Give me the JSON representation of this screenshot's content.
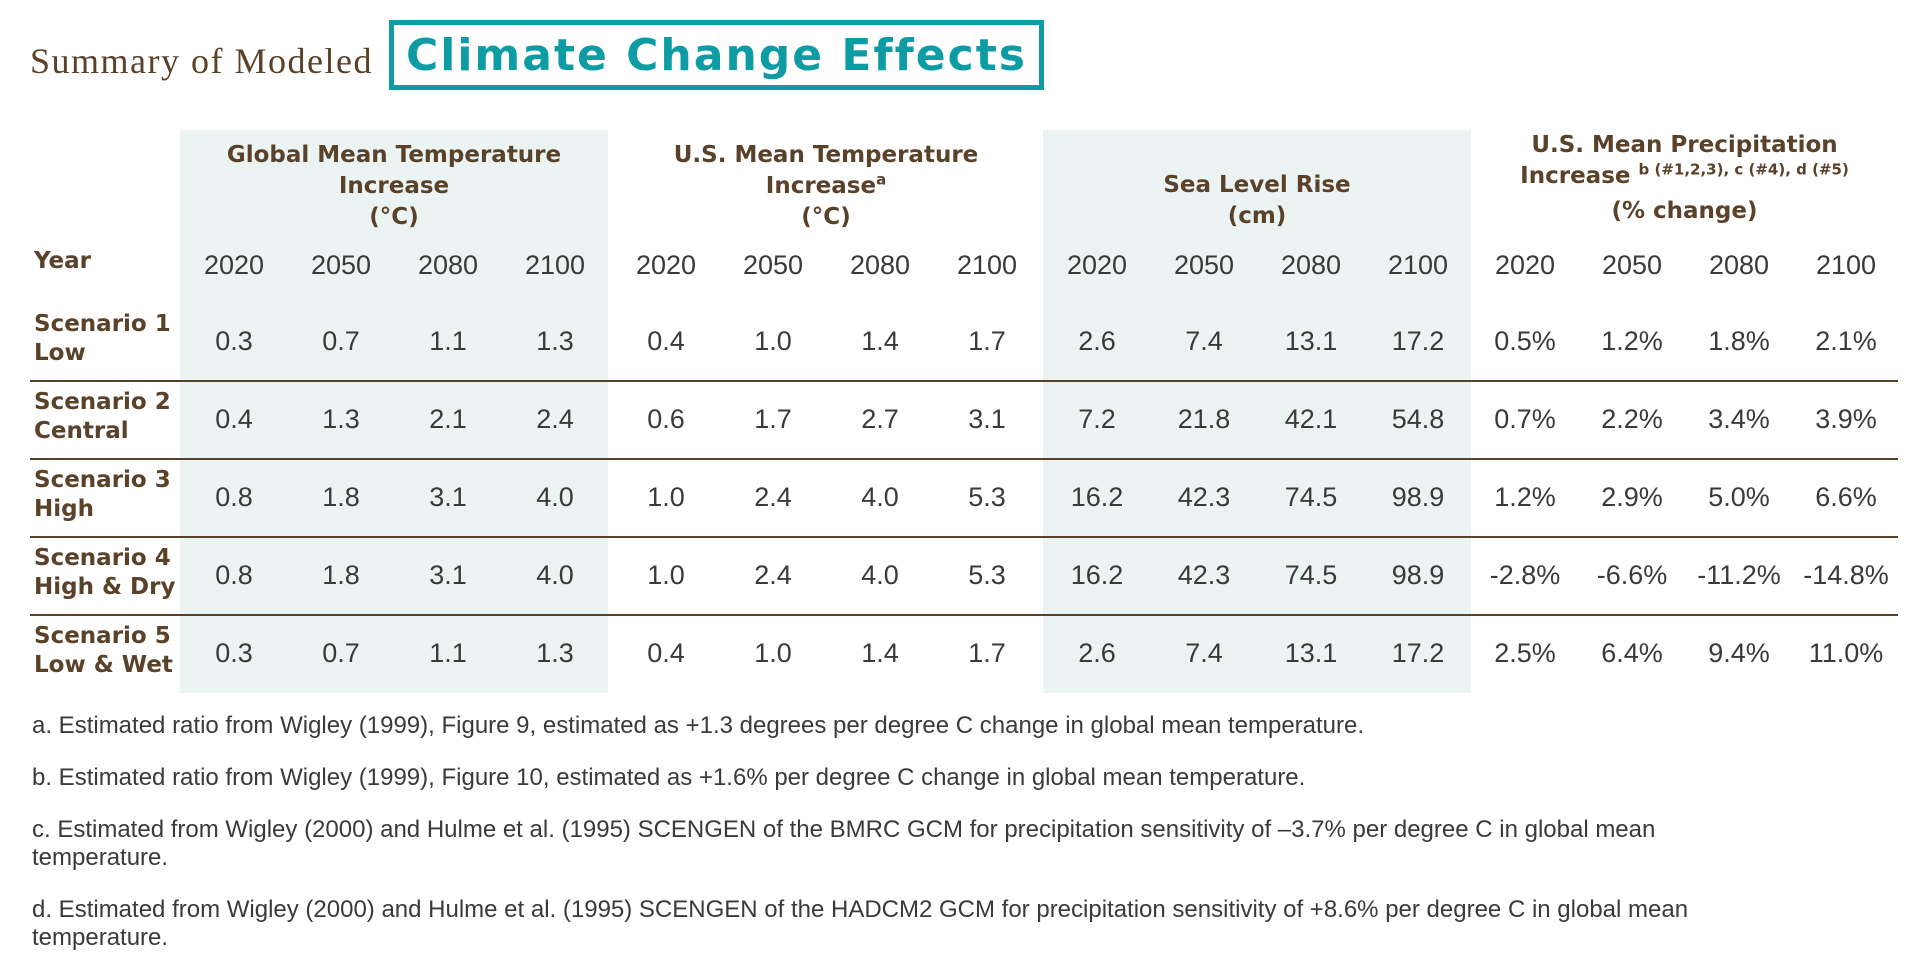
{
  "title": {
    "prefix": "Summary of Modeled",
    "main": "Climate Change Effects"
  },
  "table": {
    "year_label": "Year",
    "groups": [
      {
        "line1": "Global Mean Temperature",
        "line2": "Increase",
        "sup": "",
        "unit": "(°C)"
      },
      {
        "line1": "U.S. Mean Temperature",
        "line2": "Increase",
        "sup": "a",
        "unit": "(°C)"
      },
      {
        "line1": "Sea Level Rise",
        "line2": "",
        "sup": "",
        "unit": "(cm)"
      },
      {
        "line1": "U.S. Mean Precipitation",
        "line2": "Increase",
        "sup": "b (#1,2,3), c (#4), d (#5)",
        "unit": "(% change)"
      }
    ],
    "years": [
      "2020",
      "2050",
      "2080",
      "2100",
      "2020",
      "2050",
      "2080",
      "2100",
      "2020",
      "2050",
      "2080",
      "2100",
      "2020",
      "2050",
      "2080",
      "2100"
    ],
    "rows": [
      {
        "name": "Scenario 1",
        "sub": "Low",
        "values": [
          "0.3",
          "0.7",
          "1.1",
          "1.3",
          "0.4",
          "1.0",
          "1.4",
          "1.7",
          "2.6",
          "7.4",
          "13.1",
          "17.2",
          "0.5%",
          "1.2%",
          "1.8%",
          "2.1%"
        ]
      },
      {
        "name": "Scenario 2",
        "sub": "Central",
        "values": [
          "0.4",
          "1.3",
          "2.1",
          "2.4",
          "0.6",
          "1.7",
          "2.7",
          "3.1",
          "7.2",
          "21.8",
          "42.1",
          "54.8",
          "0.7%",
          "2.2%",
          "3.4%",
          "3.9%"
        ]
      },
      {
        "name": "Scenario 3",
        "sub": "High",
        "values": [
          "0.8",
          "1.8",
          "3.1",
          "4.0",
          "1.0",
          "2.4",
          "4.0",
          "5.3",
          "16.2",
          "42.3",
          "74.5",
          "98.9",
          "1.2%",
          "2.9%",
          "5.0%",
          "6.6%"
        ]
      },
      {
        "name": "Scenario 4",
        "sub": "High & Dry",
        "values": [
          "0.8",
          "1.8",
          "3.1",
          "4.0",
          "1.0",
          "2.4",
          "4.0",
          "5.3",
          "16.2",
          "42.3",
          "74.5",
          "98.9",
          "-2.8%",
          "-6.6%",
          "-11.2%",
          "-14.8%"
        ]
      },
      {
        "name": "Scenario 5",
        "sub": "Low & Wet",
        "values": [
          "0.3",
          "0.7",
          "1.1",
          "1.3",
          "0.4",
          "1.0",
          "1.4",
          "1.7",
          "2.6",
          "7.4",
          "13.1",
          "17.2",
          "2.5%",
          "6.4%",
          "9.4%",
          "11.0%"
        ]
      }
    ]
  },
  "footnotes": [
    "a. Estimated ratio from Wigley (1999), Figure 9, estimated as +1.3 degrees per degree C change in global mean temperature.",
    "b. Estimated ratio from Wigley (1999), Figure 10, estimated as +1.6% per degree C change in global mean temperature.",
    "c. Estimated from Wigley (2000) and Hulme et al. (1995) SCENGEN of the BMRC GCM for precipitation sensitivity of –3.7% per degree C in global mean temperature.",
    "d. Estimated from Wigley (2000) and Hulme et al. (1995) SCENGEN of the HADCM2 GCM for precipitation sensitivity of +8.6% per degree C in global mean temperature."
  ]
}
